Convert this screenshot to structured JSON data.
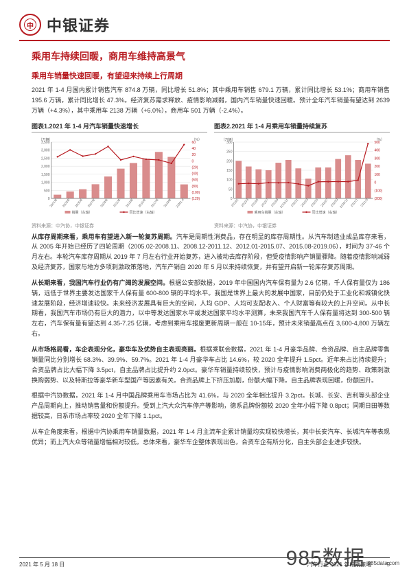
{
  "header": {
    "company": "中银证券",
    "logo_color": "#b81c22"
  },
  "title": "乘用车持续回暖，商用车维持高景气",
  "section1": {
    "heading": "乘用车销量快速回暖，有望迎来持续上行周期",
    "para": "2021 年 1-4 月国内累计销售汽车 874.8 万辆，同比增长 51.8%；其中乘用车销售 679.1 万辆，累计同比增长 53.1%；商用车销售 195.6 万辆，累计同比增长 47.3%。经济复苏需求释放、疫情影响减弱，国内汽车销量快速回暖。预计全年汽车销量有望达到 2639 万辆（+4.3%），其中乘用车 2138 万辆（+6.0%），商用车 501 万辆（-2.4%）。"
  },
  "chart1": {
    "title": "图表1.2021 年 1-4 月汽车销量快速增长",
    "y_label": "（万辆）",
    "y2_label": "（%）",
    "categories": [
      "2001年",
      "2003年",
      "2005年",
      "2007年",
      "2009年",
      "2011年",
      "2013年",
      "2015年",
      "2017年",
      "2019年",
      "21M1-4"
    ],
    "bars": [
      230,
      430,
      570,
      880,
      1360,
      1850,
      2200,
      2460,
      2890,
      2580,
      870
    ],
    "line": [
      13,
      35,
      15,
      22,
      46,
      3,
      14,
      5,
      3,
      -8,
      52
    ],
    "ylim": [
      0,
      3500
    ],
    "ytick": 500,
    "y2lim": [
      -120,
      60
    ],
    "y2tick": 20,
    "bar_color": "#d98c8c",
    "line_color": "#b81c22",
    "grid_color": "#e0e0e0",
    "bg": "#ffffff",
    "legend": [
      "销量（左轴）",
      "同比增速（右轴）"
    ],
    "source": "资料来源：中汽协，中银证券"
  },
  "chart2": {
    "title": "图表2.2021 年 1-4 月乘用车销量持续复苏",
    "y_label": "（万辆）",
    "y2_label": "（%）",
    "categories": [
      "2019/1",
      "2019/3",
      "2019/5",
      "2019/7",
      "2019/9",
      "2019/11",
      "2020/1",
      "2020/3",
      "2020/5",
      "2020/7",
      "2020/9",
      "2020/11",
      "2021/1",
      "2021/3"
    ],
    "bars": [
      200,
      170,
      155,
      150,
      190,
      205,
      160,
      105,
      165,
      165,
      210,
      230,
      205,
      185
    ],
    "line": [
      -18,
      -13,
      -17,
      -4,
      -6,
      -4,
      -20,
      -43,
      7,
      8,
      9,
      8,
      27,
      480
    ],
    "ylim": [
      0,
      300
    ],
    "ytick": 50,
    "y2lim": [
      -200,
      500
    ],
    "y2tick": 100,
    "bar_color": "#d98c8c",
    "line_color": "#b81c22",
    "grid_color": "#e0e0e0",
    "bg": "#ffffff",
    "legend": [
      "乘用车销量（左轴）",
      "同比增速（右轴）"
    ],
    "source": "资料来源：中汽协，中银证券"
  },
  "section2": {
    "p1_bold": "从库存周期来看，乘用车有望进入新一轮复苏周期。",
    "p1": "汽车是周期性消费品，存在明显的库存周期性。从汽车制造业成品库存来看，从 2005 年开始已经历了四轮周期（2005.02-2008.11、2008.12-2011.12、2012.01-2015.07、2015.08-2019.06），时间为 37-46 个月左右。本轮汽车库存周期从 2019 年 7 月左右行业开始复苏，进入被动去库存阶段，但受疫情影响产销量骤降。随着疫情影响减弱及经济复苏，国家与地方多项刺激政策落地，汽车产销自 2020 年 5 月以来持续恢复，并有望开启新一轮库存复苏周期。",
    "p2_bold": "从长期来看，我国汽车行业仍有广阔的发展空间。",
    "p2": "根据公安部数据，2019 年中国国内汽车保有量为 2.6 亿辆，千人保有量仅为 186 辆，远低于世界主要发达国家千人保有量 600-800 辆的平均水平。我国是世界上最大的发展中国家，目前仍处于工业化和城镇化快速发展阶段，经济增速较快。未来经济发展具有巨大的空间，人均 GDP、人均可支配收入、个人财富等有较大的上升空间。从中长期看，我国汽车市场仍有巨大的潜力，以中等发达国家水平或发达国家平均水平测算，未来我国汽车千人保有量将达到 300-500 辆左右，汽车保有量有望达到 4.35-7.25 亿辆，考虑到乘用车报废更新周期一般在 10-15年，预计未来销量高点在 3,600-4,800 万辆左右。",
    "p3_bold": "从市场格局看，车企表现分化，豪华车及优势自主表现亮丽。",
    "p3": "根据乘联会数据，2021 年 1-4 月豪华品牌、合资品牌、自主品牌零售销量同比分别增长 68.3%、39.9%、59.7%。2021 年 1-4 月豪华车占比 14.6%，较 2020 全年提升 1.5pct。近年来占比持续提升；合资品牌占比大幅下降 3.5pct，自主品牌占比提升约 2.0pct。豪华车销量持续较快，预计与疫情影响消费两极化的趋势、政策刺激换购弱势、以及特斯拉等豪华新车型国产等因素有关。合资品牌上下挤压加剧，份额大幅下降。自主品牌表现回暖，份额回升。",
    "p4": "根据中汽协数据，2021 年 1-4 月中国品牌乘用车市场占比为 41.6%，与 2020 全年相比提升 3.2pct。长城、长安、吉利等头部企业产品周期向上，推动销售量和份额提升。受到上汽大众汽车停产等影响，德系品牌份额较 2020 全年小幅下降 0.8pct；同期日田等数据较高，日系市场占率较 2020 全年下降 1.1pct。",
    "p5": "从车企角度来看，根据中汽协乘用车销量数据，2021 年 1-4 月主流车企累计销量均实现较快增长，其中长安汽车、长城汽车等表现优异；而上汽大众等销量增幅相对较低。总体来看，豪华车企整体表现出色，合资车企有所分化，自主头部企业进步较快。"
  },
  "footer": {
    "date": "2021 年 5 月 18 日",
    "right": "汽车行业 2021 年中期策略",
    "page": 5
  },
  "watermark": {
    "big": "985数据",
    "small": "985data.com"
  }
}
